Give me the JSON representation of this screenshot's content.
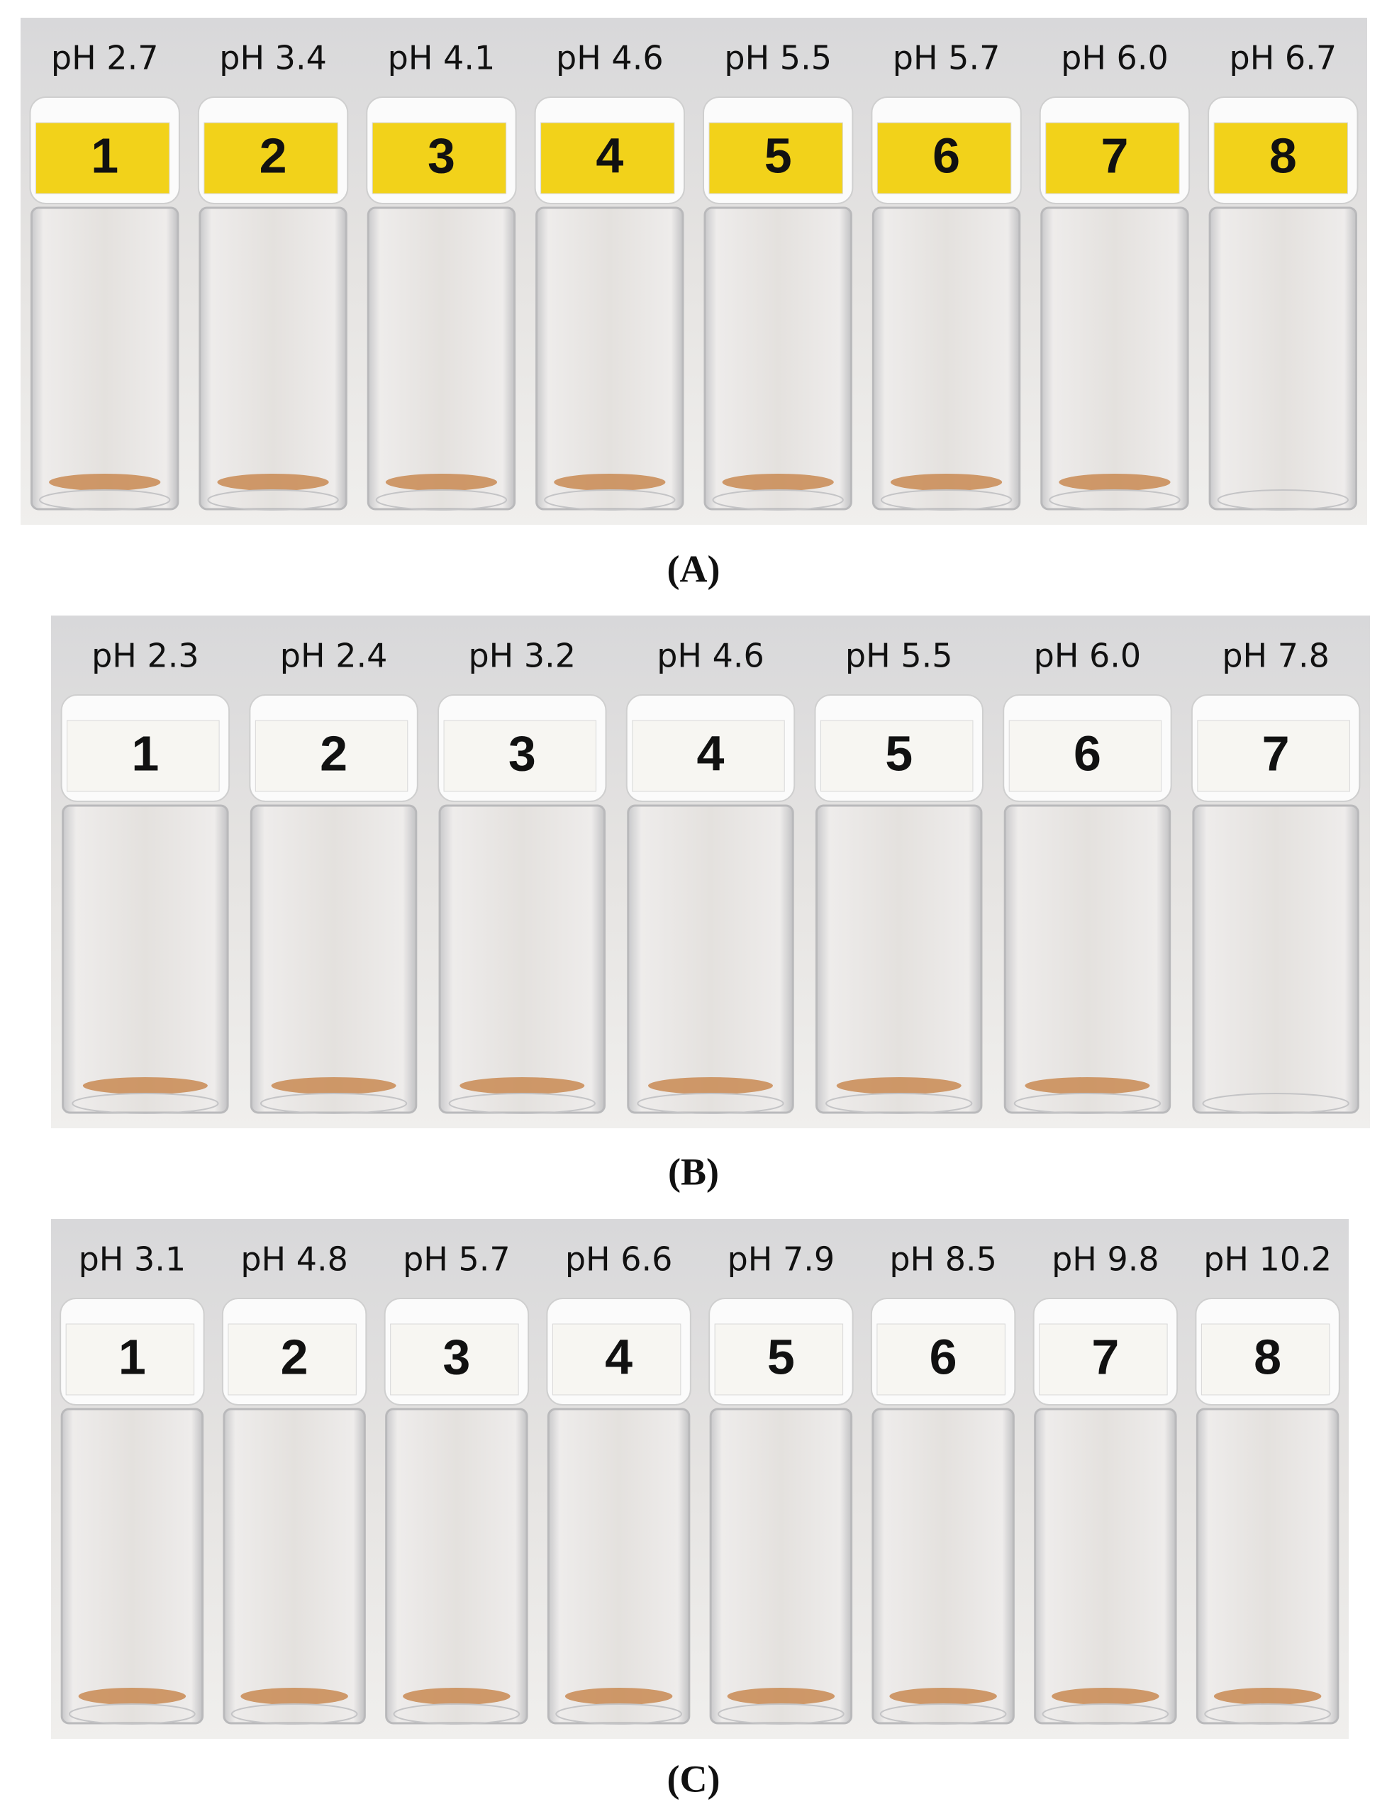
{
  "panels": [
    {
      "caption": "(A)",
      "vials": [
        {
          "ph": "pH 2.7",
          "number": "1"
        },
        {
          "ph": "pH 3.4",
          "number": "2"
        },
        {
          "ph": "pH 4.1",
          "number": "3"
        },
        {
          "ph": "pH 4.6",
          "number": "4"
        },
        {
          "ph": "pH 5.5",
          "number": "5"
        },
        {
          "ph": "pH 5.7",
          "number": "6"
        },
        {
          "ph": "pH 6.0",
          "number": "7"
        },
        {
          "ph": "pH 6.7",
          "number": "8"
        }
      ]
    },
    {
      "caption": "(B)",
      "vials": [
        {
          "ph": "pH 2.3",
          "number": "1"
        },
        {
          "ph": "pH 2.4",
          "number": "2"
        },
        {
          "ph": "pH 3.2",
          "number": "3"
        },
        {
          "ph": "pH 4.6",
          "number": "4"
        },
        {
          "ph": "pH 5.5",
          "number": "5"
        },
        {
          "ph": "pH 6.0",
          "number": "6"
        },
        {
          "ph": "pH 7.8",
          "number": "7"
        }
      ]
    },
    {
      "caption": "(C)",
      "vials": [
        {
          "ph": "pH 3.1",
          "number": "1"
        },
        {
          "ph": "pH 4.8",
          "number": "2"
        },
        {
          "ph": "pH 5.7",
          "number": "3"
        },
        {
          "ph": "pH 6.6",
          "number": "4"
        },
        {
          "ph": "pH 7.9",
          "number": "5"
        },
        {
          "ph": "pH 8.5",
          "number": "6"
        },
        {
          "ph": "pH 9.8",
          "number": "7"
        },
        {
          "ph": "pH 10.2",
          "number": "8"
        }
      ]
    }
  ]
}
